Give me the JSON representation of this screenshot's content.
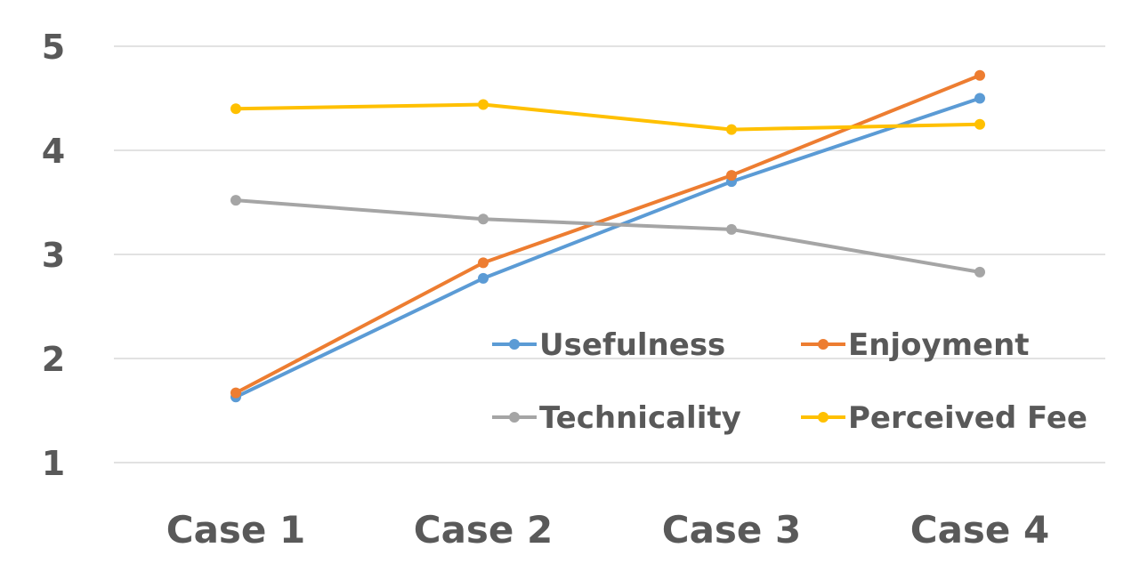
{
  "chart_data": {
    "type": "line",
    "categories": [
      "Case 1",
      "Case 2",
      "Case 3",
      "Case 4"
    ],
    "ylim": [
      1,
      5
    ],
    "yticks": [
      "1",
      "2",
      "3",
      "4",
      "5"
    ],
    "grid": true,
    "legend_position": "lower-right-inside",
    "series": [
      {
        "name": "Usefulness",
        "color": "#5B9BD5",
        "values": [
          1.63,
          2.77,
          3.7,
          4.5
        ]
      },
      {
        "name": "Enjoyment",
        "color": "#ED7D31",
        "values": [
          1.67,
          2.92,
          3.76,
          4.72
        ]
      },
      {
        "name": "Technicality",
        "color": "#A5A5A5",
        "values": [
          3.52,
          3.34,
          3.24,
          2.83
        ]
      },
      {
        "name": "Perceived Fee",
        "color": "#FFC000",
        "values": [
          4.4,
          4.44,
          4.2,
          4.25
        ]
      }
    ]
  }
}
